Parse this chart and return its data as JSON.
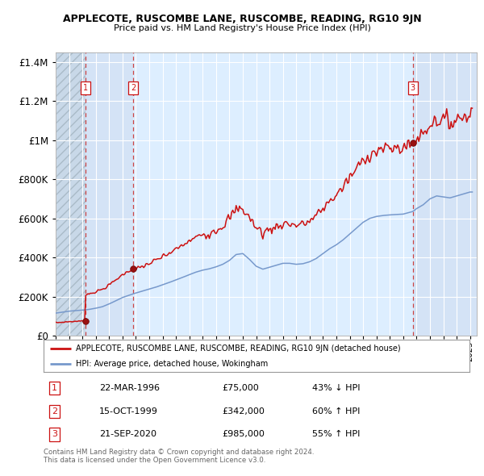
{
  "title": "APPLECOTE, RUSCOMBE LANE, RUSCOMBE, READING, RG10 9JN",
  "subtitle": "Price paid vs. HM Land Registry's House Price Index (HPI)",
  "sale1": {
    "date": 1996.22,
    "price": 75000
  },
  "sale2": {
    "date": 1999.79,
    "price": 342000
  },
  "sale3": {
    "date": 2020.72,
    "price": 985000
  },
  "legend_line1": "APPLECOTE, RUSCOMBE LANE, RUSCOMBE, READING, RG10 9JN (detached house)",
  "legend_line2": "HPI: Average price, detached house, Wokingham",
  "table_rows": [
    [
      "1",
      "22-MAR-1996",
      "£75,000",
      "43% ↓ HPI"
    ],
    [
      "2",
      "15-OCT-1999",
      "£342,000",
      "60% ↑ HPI"
    ],
    [
      "3",
      "21-SEP-2020",
      "£985,000",
      "55% ↑ HPI"
    ]
  ],
  "footer1": "Contains HM Land Registry data © Crown copyright and database right 2024.",
  "footer2": "This data is licensed under the Open Government Licence v3.0.",
  "ylim": [
    0,
    1450000
  ],
  "yticks": [
    0,
    200000,
    400000,
    600000,
    800000,
    1000000,
    1200000,
    1400000
  ],
  "line_color_red": "#cc1111",
  "line_color_blue": "#7799cc",
  "bg_color_main": "#ddeeff",
  "bg_color_hatch": "#c8d8e8"
}
